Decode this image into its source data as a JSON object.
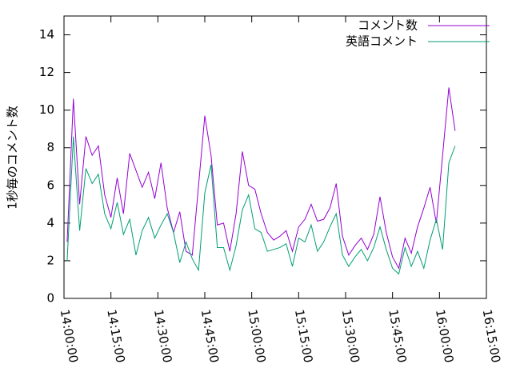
{
  "chart_data": {
    "type": "line",
    "ylabel": "1秒毎のコメント数",
    "x": [
      "14:01:00",
      "14:03:00",
      "14:05:00",
      "14:07:00",
      "14:09:00",
      "14:11:00",
      "14:13:00",
      "14:15:00",
      "14:17:00",
      "14:19:00",
      "14:21:00",
      "14:23:00",
      "14:25:00",
      "14:27:00",
      "14:29:00",
      "14:31:00",
      "14:33:00",
      "14:35:00",
      "14:37:00",
      "14:39:00",
      "14:41:00",
      "14:43:00",
      "14:45:00",
      "14:47:00",
      "14:49:00",
      "14:51:00",
      "14:53:00",
      "14:55:00",
      "14:57:00",
      "14:59:00",
      "15:01:00",
      "15:03:00",
      "15:05:00",
      "15:07:00",
      "15:09:00",
      "15:11:00",
      "15:13:00",
      "15:15:00",
      "15:17:00",
      "15:19:00",
      "15:21:00",
      "15:23:00",
      "15:25:00",
      "15:27:00",
      "15:29:00",
      "15:31:00",
      "15:33:00",
      "15:35:00",
      "15:37:00",
      "15:39:00",
      "15:41:00",
      "15:43:00",
      "15:45:00",
      "15:47:00",
      "15:49:00",
      "15:51:00",
      "15:53:00",
      "15:55:00",
      "15:57:00",
      "15:59:00",
      "16:01:00",
      "16:03:00",
      "16:05:00"
    ],
    "series": [
      {
        "name": "コメント数",
        "color": "#9400d3",
        "values": [
          3.0,
          10.6,
          5.0,
          8.6,
          7.6,
          8.1,
          5.5,
          4.3,
          6.4,
          4.5,
          7.7,
          6.8,
          5.9,
          6.7,
          5.3,
          7.2,
          4.8,
          3.5,
          4.6,
          2.5,
          2.3,
          6.0,
          9.7,
          7.6,
          3.9,
          4.0,
          2.5,
          4.5,
          7.8,
          6.0,
          5.8,
          4.5,
          3.5,
          3.1,
          3.3,
          3.6,
          2.5,
          3.8,
          4.2,
          5.0,
          4.1,
          4.2,
          4.8,
          6.1,
          3.3,
          2.3,
          2.8,
          3.2,
          2.6,
          3.4,
          5.4,
          3.5,
          2.2,
          1.6,
          3.2,
          2.4,
          3.8,
          4.8,
          5.9,
          4.0,
          7.6,
          11.2,
          8.9
        ]
      },
      {
        "name": "英語コメント",
        "color": "#009e73",
        "values": [
          2.0,
          8.6,
          3.6,
          6.9,
          6.1,
          6.6,
          4.5,
          3.7,
          5.1,
          3.4,
          4.2,
          2.3,
          3.6,
          4.3,
          3.2,
          3.9,
          4.5,
          3.5,
          1.9,
          3.0,
          2.1,
          1.5,
          5.6,
          7.1,
          2.7,
          2.7,
          1.5,
          2.8,
          4.7,
          5.5,
          3.7,
          3.5,
          2.5,
          2.6,
          2.7,
          2.9,
          1.7,
          3.2,
          3.0,
          3.9,
          2.5,
          3.0,
          3.8,
          4.5,
          2.3,
          1.7,
          2.2,
          2.6,
          2.0,
          2.7,
          3.8,
          2.6,
          1.6,
          1.3,
          2.7,
          1.7,
          2.5,
          1.6,
          3.1,
          4.2,
          2.6,
          7.2,
          8.1
        ]
      }
    ],
    "xlim": [
      "14:00:00",
      "16:15:00"
    ],
    "xticks": [
      "14:00:00",
      "14:15:00",
      "14:30:00",
      "14:45:00",
      "15:00:00",
      "15:15:00",
      "15:30:00",
      "15:45:00",
      "16:00:00",
      "16:15:00"
    ],
    "ylim": [
      0,
      15
    ],
    "yticks": [
      0,
      2,
      4,
      6,
      8,
      10,
      12,
      14
    ],
    "legend": "top-right"
  }
}
